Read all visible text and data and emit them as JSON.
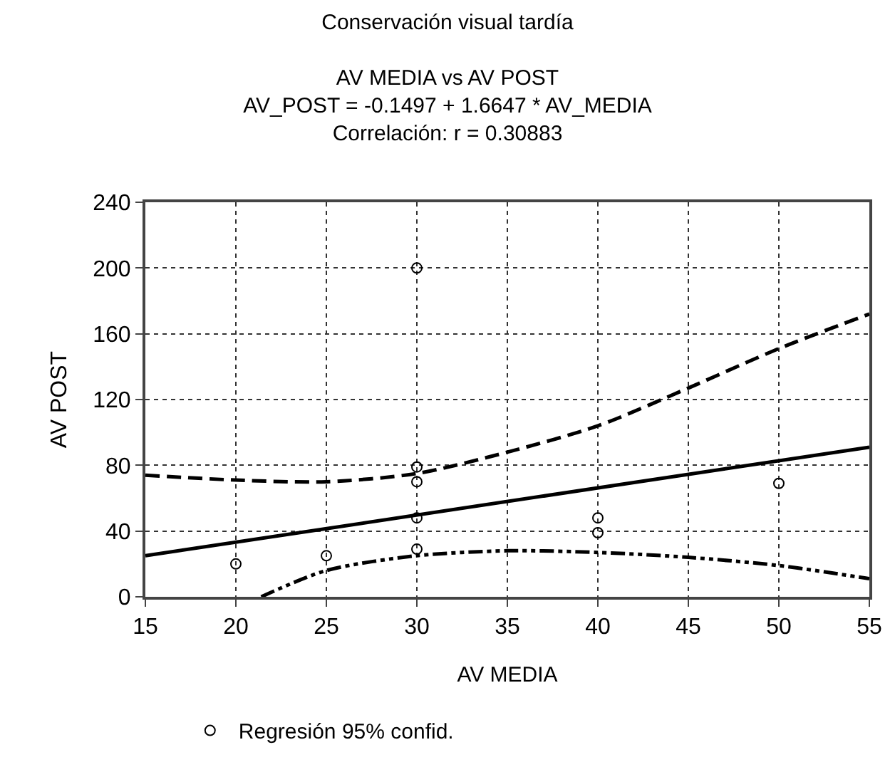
{
  "chart_data": {
    "type": "scatter",
    "title": "Conservación visual tardía",
    "subtitle": "AV MEDIA vs AV POST\nAV_POST = -0.1497 + 1.6647 * AV_MEDIA\nCorrelación: r = 0.30883",
    "xlabel": "AV MEDIA",
    "ylabel": "AV POST",
    "xlim": [
      15,
      55
    ],
    "xticks": [
      15,
      20,
      25,
      30,
      35,
      40,
      45,
      50,
      55
    ],
    "ylim": [
      0,
      240
    ],
    "yticks": [
      0,
      40,
      80,
      120,
      160,
      200,
      240
    ],
    "grid": true,
    "legend": "bottom left",
    "series": [
      {
        "name": "Regresión 95% confid.",
        "marker": "circle",
        "color": "#000000",
        "x": [
          20,
          25,
          30,
          30,
          30,
          30,
          30,
          40,
          40,
          50
        ],
        "values": [
          20,
          25,
          200,
          79,
          70,
          48,
          29,
          48,
          39,
          69
        ]
      },
      {
        "type": "line",
        "color": "#000000",
        "line_style": "solid",
        "x": [
          15,
          55
        ],
        "values": [
          25,
          91
        ]
      },
      {
        "type": "line",
        "color": "#000000",
        "line_style": "dashed",
        "x": [
          15,
          20,
          25,
          30,
          35,
          40,
          45,
          50,
          55
        ],
        "values": [
          74,
          71,
          70,
          75,
          88,
          104,
          127,
          151,
          172
        ]
      },
      {
        "type": "line",
        "color": "#000000",
        "line_style": "dashdot",
        "x": [
          21.4,
          25,
          30,
          35,
          40,
          45,
          50,
          55
        ],
        "values": [
          0,
          16,
          25,
          28,
          27,
          24,
          19,
          11
        ]
      }
    ]
  }
}
